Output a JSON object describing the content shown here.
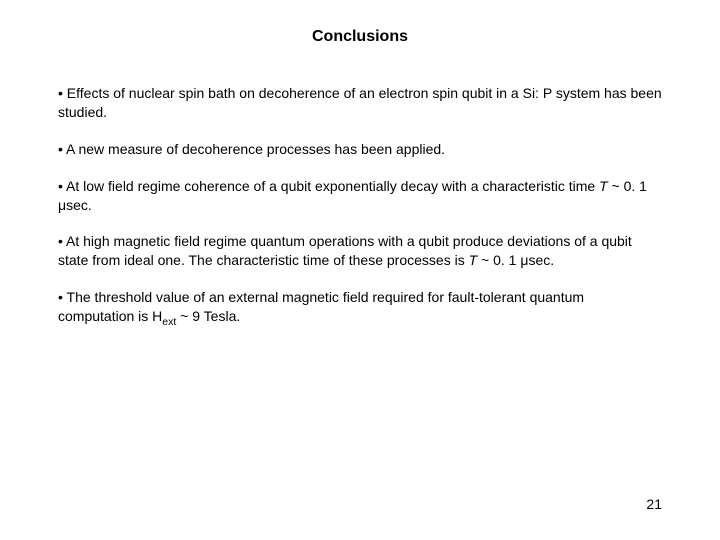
{
  "slide": {
    "title": "Conclusions",
    "title_fontsize": 16,
    "body_fontsize": 14,
    "background_color": "#ffffff",
    "text_color": "#000000",
    "page_number": "21",
    "bullets": [
      {
        "text_pre": "• Effects of nuclear spin bath on decoherence of an electron spin qubit in a Si: P system has been studied."
      },
      {
        "text_pre": "• A new measure of decoherence processes has been applied."
      },
      {
        "text_pre": "• At low field regime  coherence of a qubit exponentially decay with a characteristic time ",
        "italic_var": "T",
        "text_mid": " ~ 0. 1 ",
        "mu": "μ",
        "text_post": "sec."
      },
      {
        "text_pre": "• At high magnetic field regime quantum operations with a qubit produce deviations of a qubit state from ideal one. The characteristic time of these processes is ",
        "italic_var": "T",
        "text_mid": " ~ 0. 1 ",
        "mu": "μ",
        "text_post": "sec."
      },
      {
        "text_pre": "• The threshold value of an external magnetic field required for fault-tolerant quantum computation is H",
        "sub": "ext",
        "text_mid": " ~ 9 Tesla."
      }
    ]
  }
}
